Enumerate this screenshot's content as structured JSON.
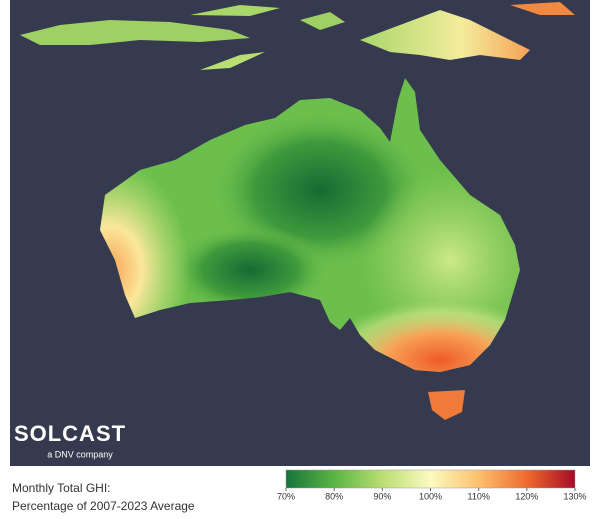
{
  "logo": {
    "name": "SOLCAST",
    "tagline": "a DNV company"
  },
  "caption": {
    "line1": "Monthly Total GHI:",
    "line2": "Percentage of 2007-2023 Average"
  },
  "colorbar": {
    "range": [
      70,
      130
    ],
    "ticks": [
      {
        "value": 70,
        "label": "70%"
      },
      {
        "value": 80,
        "label": "80%"
      },
      {
        "value": 90,
        "label": "90%"
      },
      {
        "value": 100,
        "label": "100%"
      },
      {
        "value": 110,
        "label": "110%"
      },
      {
        "value": 120,
        "label": "120%"
      },
      {
        "value": 130,
        "label": "130%"
      }
    ],
    "colors": [
      "#16743a",
      "#5bb543",
      "#b9de72",
      "#fcfac0",
      "#fdc06c",
      "#ef6a2e",
      "#a50b26"
    ]
  }
}
